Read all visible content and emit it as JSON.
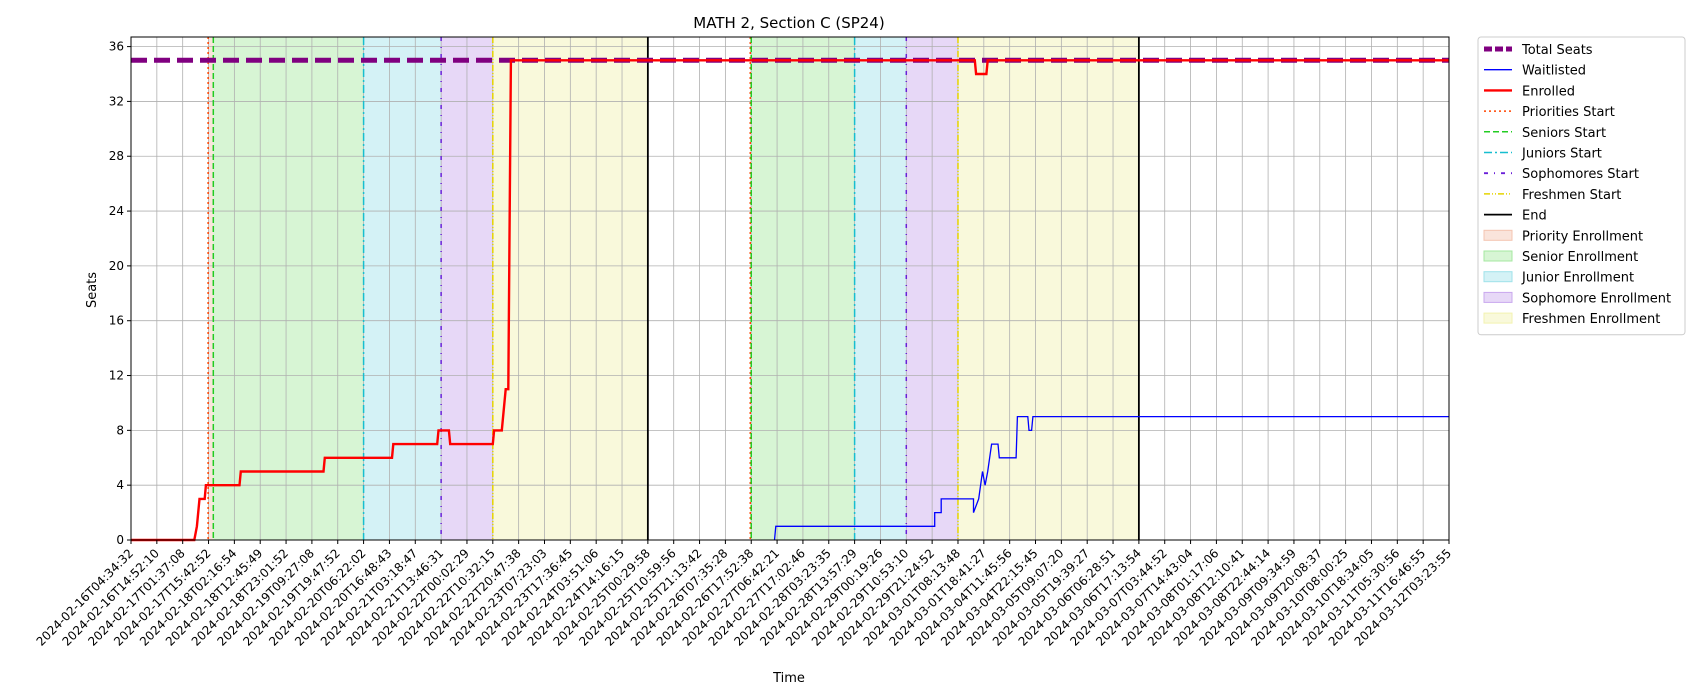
{
  "chart_data": {
    "type": "line",
    "title": "MATH 2, Section C (SP24)",
    "xlabel": "Time",
    "ylabel": "Seats",
    "ylim": [
      0,
      36.7
    ],
    "yticks": [
      0,
      4,
      8,
      12,
      16,
      20,
      24,
      28,
      32,
      36
    ],
    "grid": true,
    "legend_position": "outside-right",
    "xlim": [
      "2024-02-16T04:34:32",
      "2024-03-12T03:23:55"
    ],
    "xticks": [
      "2024-02-16T04:34:32",
      "2024-02-16T14:52:10",
      "2024-02-17T01:37:08",
      "2024-02-17T15:42:52",
      "2024-02-18T02:16:54",
      "2024-02-18T12:45:49",
      "2024-02-18T23:01:52",
      "2024-02-19T09:27:08",
      "2024-02-19T19:47:52",
      "2024-02-20T06:22:02",
      "2024-02-20T16:48:43",
      "2024-02-21T03:18:47",
      "2024-02-21T13:46:31",
      "2024-02-22T00:02:29",
      "2024-02-22T10:32:15",
      "2024-02-22T20:47:38",
      "2024-02-23T07:23:03",
      "2024-02-23T17:36:45",
      "2024-02-24T03:51:06",
      "2024-02-24T14:16:15",
      "2024-02-25T00:29:58",
      "2024-02-25T10:59:56",
      "2024-02-25T21:13:42",
      "2024-02-26T07:35:28",
      "2024-02-26T17:52:38",
      "2024-02-27T06:42:21",
      "2024-02-27T17:02:46",
      "2024-02-28T03:23:35",
      "2024-02-28T13:57:29",
      "2024-02-29T00:19:26",
      "2024-02-29T10:53:10",
      "2024-02-29T21:24:52",
      "2024-03-01T08:13:48",
      "2024-03-01T18:41:27",
      "2024-03-04T11:45:56",
      "2024-03-04T22:15:45",
      "2024-03-05T09:07:20",
      "2024-03-05T19:39:27",
      "2024-03-06T06:28:51",
      "2024-03-06T17:13:54",
      "2024-03-07T03:44:52",
      "2024-03-07T14:43:04",
      "2024-03-08T01:17:06",
      "2024-03-08T12:10:41",
      "2024-03-08T22:44:14",
      "2024-03-09T09:34:59",
      "2024-03-09T20:08:37",
      "2024-03-10T08:00:25",
      "2024-03-10T18:34:05",
      "2024-03-11T05:30:56",
      "2024-03-11T16:46:55",
      "2024-03-12T03:23:55"
    ],
    "spans": [
      {
        "name": "Priority Enrollment",
        "start": "2024-02-17T15:30:00",
        "end": "2024-02-17T17:40:00",
        "color": "#f4c4b0"
      },
      {
        "name": "Senior Enrollment",
        "start": "2024-02-17T17:40:00",
        "end": "2024-02-20T06:22:02",
        "color": "#a6e8a0"
      },
      {
        "name": "Junior Enrollment",
        "start": "2024-02-20T06:22:02",
        "end": "2024-02-21T13:46:31",
        "color": "#9fe2ea"
      },
      {
        "name": "Sophomore Enrollment",
        "start": "2024-02-21T13:46:31",
        "end": "2024-02-22T10:32:15",
        "color": "#c9a8ee"
      },
      {
        "name": "Freshmen Enrollment",
        "start": "2024-02-22T10:32:15",
        "end": "2024-02-25T00:29:58",
        "color": "#f2f2b0"
      },
      {
        "name": "Priority Enrollment",
        "start": "2024-02-26T17:30:00",
        "end": "2024-02-26T17:52:38",
        "color": "#f4c4b0"
      },
      {
        "name": "Senior Enrollment",
        "start": "2024-02-26T17:52:38",
        "end": "2024-02-28T13:57:29",
        "color": "#a6e8a0"
      },
      {
        "name": "Junior Enrollment",
        "start": "2024-02-28T13:57:29",
        "end": "2024-02-29T10:53:10",
        "color": "#9fe2ea"
      },
      {
        "name": "Sophomore Enrollment",
        "start": "2024-02-29T10:53:10",
        "end": "2024-03-01T08:13:48",
        "color": "#c9a8ee"
      },
      {
        "name": "Freshmen Enrollment",
        "start": "2024-03-01T08:13:48",
        "end": "2024-03-06T17:13:54",
        "color": "#f2f2b0"
      }
    ],
    "markers": [
      {
        "name": "Priorities Start",
        "x": "2024-02-17T15:30:00",
        "color": "#ff4500",
        "dash": "2,3"
      },
      {
        "name": "Seniors Start",
        "x": "2024-02-17T17:40:00",
        "color": "#22cc22",
        "dash": "6,3"
      },
      {
        "name": "Juniors Start",
        "x": "2024-02-20T06:22:02",
        "color": "#17becf",
        "dash": "8,3,2,3"
      },
      {
        "name": "Sophomores Start",
        "x": "2024-02-21T13:46:31",
        "color": "#6a1fd8",
        "dash": "4,6,1,6"
      },
      {
        "name": "Freshmen Start",
        "x": "2024-02-22T10:32:15",
        "color": "#e5d400",
        "dash": "6,2,1,2,1,2"
      },
      {
        "name": "End",
        "x": "2024-02-25T00:29:58",
        "color": "#000000",
        "dash": ""
      },
      {
        "name": "Priorities Start",
        "x": "2024-02-26T17:30:00",
        "color": "#ff4500",
        "dash": "2,3"
      },
      {
        "name": "Seniors Start",
        "x": "2024-02-26T17:52:38",
        "color": "#22cc22",
        "dash": "6,3"
      },
      {
        "name": "Juniors Start",
        "x": "2024-02-28T13:57:29",
        "color": "#17becf",
        "dash": "8,3,2,3"
      },
      {
        "name": "Sophomores Start",
        "x": "2024-02-29T10:53:10",
        "color": "#6a1fd8",
        "dash": "4,6,1,6"
      },
      {
        "name": "Freshmen Start",
        "x": "2024-03-01T08:13:48",
        "color": "#e5d400",
        "dash": "6,2,1,2,1,2"
      },
      {
        "name": "End",
        "x": "2024-03-06T17:13:54",
        "color": "#000000",
        "dash": ""
      }
    ],
    "series": [
      {
        "name": "Total Seats",
        "color": "#800080",
        "style": "dashed-thick",
        "points": [
          [
            0,
            35
          ],
          [
            51,
            35
          ]
        ]
      },
      {
        "name": "Waitlisted",
        "color": "#0000ff",
        "style": "solid-thin",
        "points": [
          [
            24.9,
            0
          ],
          [
            24.95,
            1
          ],
          [
            31.1,
            1
          ],
          [
            31.1,
            2
          ],
          [
            31.35,
            2
          ],
          [
            31.35,
            3
          ],
          [
            32.6,
            3
          ],
          [
            32.6,
            2
          ],
          [
            32.8,
            3
          ],
          [
            32.95,
            5
          ],
          [
            33.05,
            4
          ],
          [
            33.15,
            5
          ],
          [
            33.3,
            7
          ],
          [
            33.55,
            7
          ],
          [
            33.6,
            6
          ],
          [
            34.25,
            6
          ],
          [
            34.3,
            9
          ],
          [
            34.7,
            9
          ],
          [
            34.75,
            8
          ],
          [
            34.85,
            8
          ],
          [
            34.9,
            9
          ],
          [
            51,
            9
          ]
        ]
      },
      {
        "name": "Enrolled",
        "color": "#ff0000",
        "style": "solid-thick",
        "points": [
          [
            0,
            0
          ],
          [
            2.45,
            0
          ],
          [
            2.55,
            1
          ],
          [
            2.65,
            3
          ],
          [
            2.85,
            3
          ],
          [
            2.9,
            4
          ],
          [
            4.2,
            4
          ],
          [
            4.25,
            5
          ],
          [
            7.45,
            5
          ],
          [
            7.5,
            6
          ],
          [
            10.1,
            6
          ],
          [
            10.15,
            7
          ],
          [
            11.85,
            7
          ],
          [
            11.9,
            8
          ],
          [
            12.3,
            8
          ],
          [
            12.35,
            7
          ],
          [
            14.0,
            7
          ],
          [
            14.05,
            8
          ],
          [
            14.35,
            8
          ],
          [
            14.4,
            9
          ],
          [
            14.5,
            11
          ],
          [
            14.6,
            11
          ],
          [
            14.7,
            35
          ],
          [
            32.65,
            35
          ],
          [
            32.7,
            34
          ],
          [
            33.1,
            34
          ],
          [
            33.15,
            35
          ],
          [
            51,
            35
          ]
        ]
      }
    ]
  },
  "legend": {
    "items": [
      {
        "label": "Total Seats",
        "kind": "line",
        "color": "#800080",
        "dash": "8,3",
        "width": 5
      },
      {
        "label": "Waitlisted",
        "kind": "line",
        "color": "#0000ff",
        "dash": "",
        "width": 1.3
      },
      {
        "label": "Enrolled",
        "kind": "line",
        "color": "#ff0000",
        "dash": "",
        "width": 2.4
      },
      {
        "label": "Priorities Start",
        "kind": "line",
        "color": "#ff4500",
        "dash": "2,3",
        "width": 1.5
      },
      {
        "label": "Seniors Start",
        "kind": "line",
        "color": "#22cc22",
        "dash": "6,3",
        "width": 1.5
      },
      {
        "label": "Juniors Start",
        "kind": "line",
        "color": "#17becf",
        "dash": "8,3,2,3",
        "width": 1.5
      },
      {
        "label": "Sophomores Start",
        "kind": "line",
        "color": "#6a1fd8",
        "dash": "4,6,1,6",
        "width": 1.8
      },
      {
        "label": "Freshmen Start",
        "kind": "line",
        "color": "#e5d400",
        "dash": "6,2,1,2,1,2",
        "width": 1.5
      },
      {
        "label": "End",
        "kind": "line",
        "color": "#000000",
        "dash": "",
        "width": 1.8
      },
      {
        "label": "Priority Enrollment",
        "kind": "patch",
        "color": "#f4c4b0"
      },
      {
        "label": "Senior Enrollment",
        "kind": "patch",
        "color": "#a6e8a0"
      },
      {
        "label": "Junior Enrollment",
        "kind": "patch",
        "color": "#9fe2ea"
      },
      {
        "label": "Sophomore Enrollment",
        "kind": "patch",
        "color": "#c9a8ee"
      },
      {
        "label": "Freshmen Enrollment",
        "kind": "patch",
        "color": "#f2f2b0"
      }
    ]
  }
}
